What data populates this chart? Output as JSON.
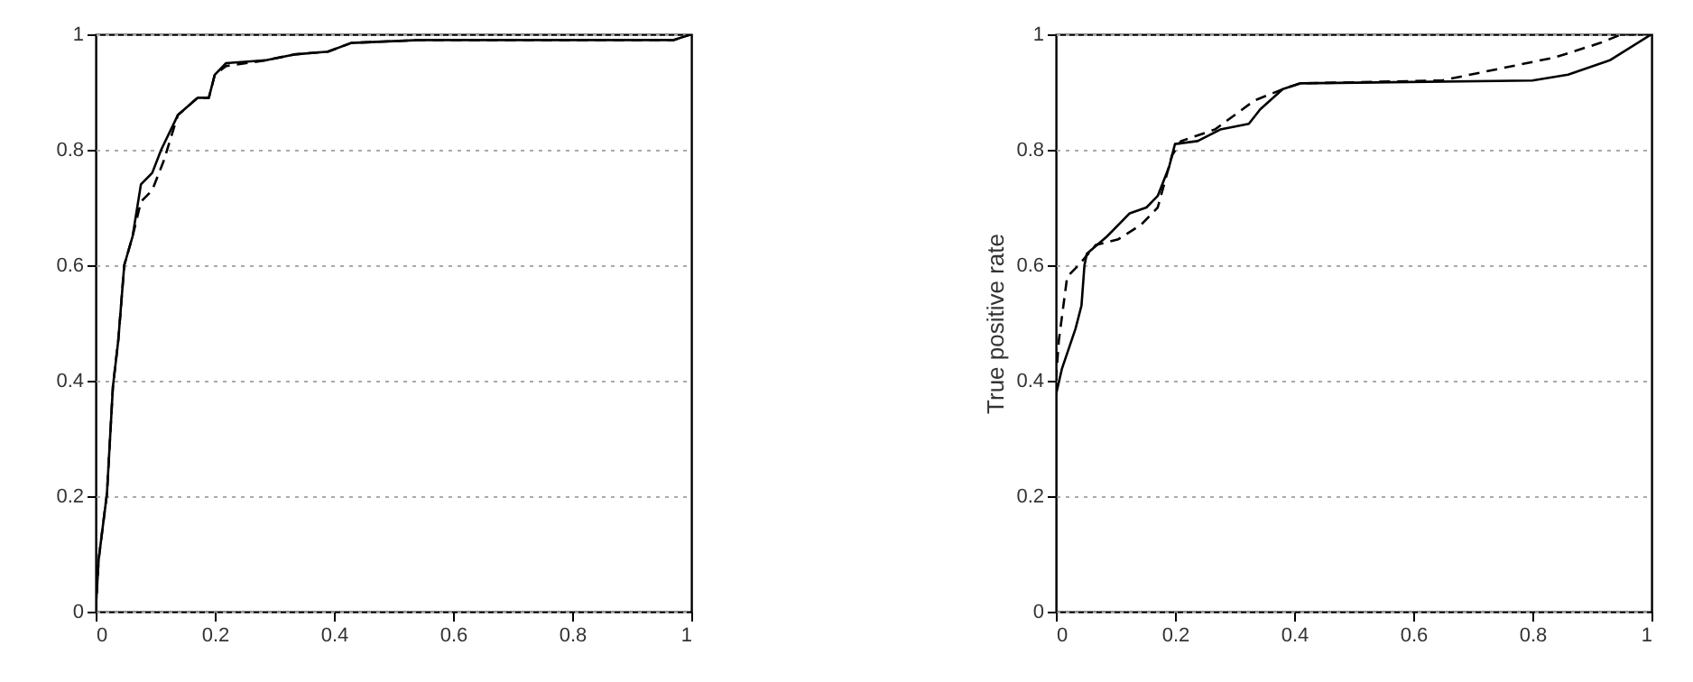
{
  "chart_data": [
    {
      "type": "line",
      "xlim": [
        0,
        1
      ],
      "ylim": [
        0,
        1
      ],
      "xticks": [
        0,
        0.2,
        0.4,
        0.6,
        0.8,
        1
      ],
      "yticks": [
        0,
        0.2,
        0.4,
        0.6,
        0.8,
        1
      ],
      "grid": "y",
      "series": [
        {
          "color": "#000000",
          "line_style": "solid",
          "x": [
            0,
            0.005,
            0.019,
            0.029,
            0.038,
            0.048,
            0.062,
            0.076,
            0.095,
            0.11,
            0.138,
            0.171,
            0.19,
            0.2,
            0.219,
            0.286,
            0.333,
            0.39,
            0.429,
            0.543,
            0.97,
            1
          ],
          "values": [
            0,
            0.09,
            0.205,
            0.39,
            0.47,
            0.6,
            0.65,
            0.74,
            0.76,
            0.8,
            0.86,
            0.89,
            0.89,
            0.93,
            0.95,
            0.955,
            0.965,
            0.97,
            0.985,
            0.99,
            0.99,
            1
          ]
        },
        {
          "color": "#000000",
          "line_style": "dashed",
          "x": [
            0,
            0.005,
            0.019,
            0.029,
            0.038,
            0.048,
            0.062,
            0.076,
            0.095,
            0.114,
            0.138,
            0.171,
            0.19,
            0.2,
            0.219,
            0.286,
            0.333,
            0.39,
            0.429,
            0.543,
            0.97,
            1
          ],
          "values": [
            0,
            0.09,
            0.205,
            0.39,
            0.47,
            0.6,
            0.65,
            0.71,
            0.73,
            0.78,
            0.86,
            0.89,
            0.89,
            0.93,
            0.945,
            0.955,
            0.965,
            0.97,
            0.985,
            0.99,
            0.99,
            1
          ]
        }
      ]
    },
    {
      "type": "line",
      "ylabel": "True positive rate",
      "xlim": [
        0,
        1
      ],
      "ylim": [
        0,
        1
      ],
      "xticks": [
        0,
        0.2,
        0.4,
        0.6,
        0.8,
        1
      ],
      "yticks": [
        0,
        0.2,
        0.4,
        0.6,
        0.8,
        1
      ],
      "grid": "y",
      "series": [
        {
          "color": "#000000",
          "line_style": "solid",
          "x": [
            0,
            0,
            0.01,
            0.033,
            0.043,
            0.048,
            0.052,
            0.086,
            0.124,
            0.152,
            0.171,
            0.19,
            0.2,
            0.238,
            0.276,
            0.324,
            0.343,
            0.381,
            0.41,
            0.8,
            0.86,
            0.93,
            1
          ],
          "values": [
            0,
            0.375,
            0.42,
            0.49,
            0.53,
            0.6,
            0.62,
            0.65,
            0.69,
            0.7,
            0.72,
            0.77,
            0.81,
            0.815,
            0.835,
            0.845,
            0.87,
            0.905,
            0.915,
            0.92,
            0.93,
            0.955,
            1
          ]
        },
        {
          "color": "#000000",
          "line_style": "dashed",
          "x": [
            0,
            0.005,
            0.019,
            0.038,
            0.067,
            0.105,
            0.143,
            0.171,
            0.195,
            0.21,
            0.267,
            0.333,
            0.381,
            0.41,
            0.648,
            0.743,
            0.838,
            0.914,
            0.95,
            1
          ],
          "values": [
            0.4,
            0.47,
            0.58,
            0.6,
            0.635,
            0.645,
            0.67,
            0.7,
            0.79,
            0.815,
            0.835,
            0.885,
            0.905,
            0.915,
            0.92,
            0.94,
            0.96,
            0.985,
            1,
            1
          ]
        }
      ]
    }
  ]
}
